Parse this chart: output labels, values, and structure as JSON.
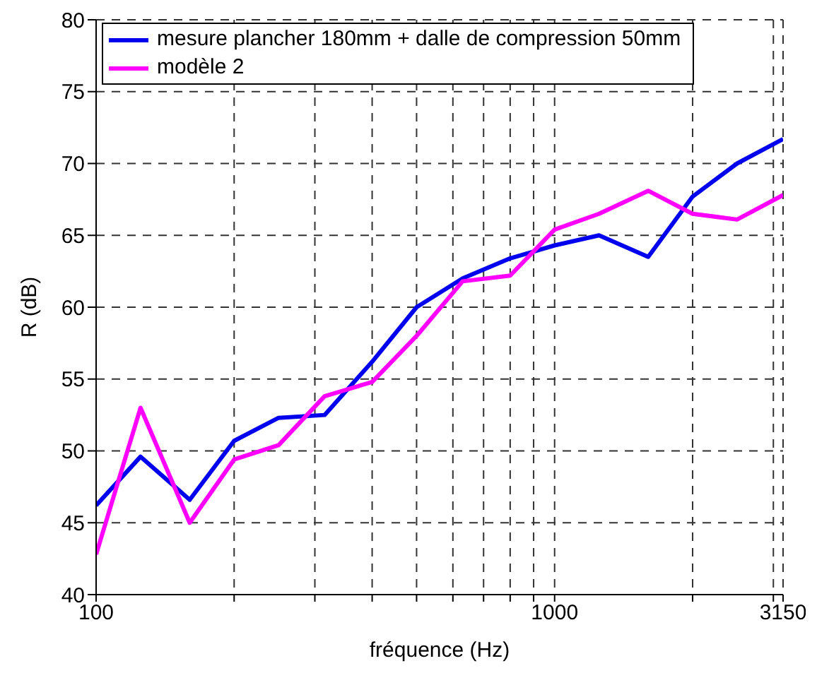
{
  "chart_data": {
    "type": "line",
    "xlabel": "fréquence (Hz)",
    "ylabel": "R (dB)",
    "log": "x",
    "grid": true,
    "legend": "top left",
    "line_style": "solid",
    "marker": "none",
    "x": [
      100,
      125,
      160,
      200,
      250,
      315,
      400,
      500,
      630,
      800,
      1000,
      1250,
      1600,
      2000,
      2500,
      3150
    ],
    "xlim": [
      100,
      3150
    ],
    "xticks": [
      100,
      {
        "value": 200,
        "label": null
      },
      {
        "value": 300,
        "label": null
      },
      {
        "value": 400,
        "label": null
      },
      {
        "value": 500,
        "label": null
      },
      {
        "value": 600,
        "label": null
      },
      {
        "value": 700,
        "label": null
      },
      {
        "value": 800,
        "label": null
      },
      {
        "value": 900,
        "label": null
      },
      1000,
      {
        "value": 2000,
        "label": null
      },
      {
        "value": 3000,
        "label": null
      },
      3150
    ],
    "ylim": [
      40,
      80
    ],
    "yticks": [
      40,
      45,
      50,
      55,
      60,
      65,
      70,
      75,
      80
    ],
    "series": [
      {
        "name": "mesure plancher 180mm + dalle de compression 50mm",
        "color": "#0000ee",
        "values": [
          46.2,
          49.6,
          46.6,
          50.7,
          52.3,
          52.5,
          56.2,
          60.0,
          62.0,
          63.4,
          64.3,
          65.0,
          63.5,
          67.7,
          70.0,
          71.7
        ]
      },
      {
        "name": "modèle 2",
        "color": "#ff00ff",
        "values": [
          42.8,
          53.0,
          45.0,
          49.4,
          50.4,
          53.8,
          54.8,
          58.0,
          61.8,
          62.2,
          65.4,
          66.5,
          68.1,
          66.5,
          66.1,
          67.8
        ]
      }
    ]
  }
}
